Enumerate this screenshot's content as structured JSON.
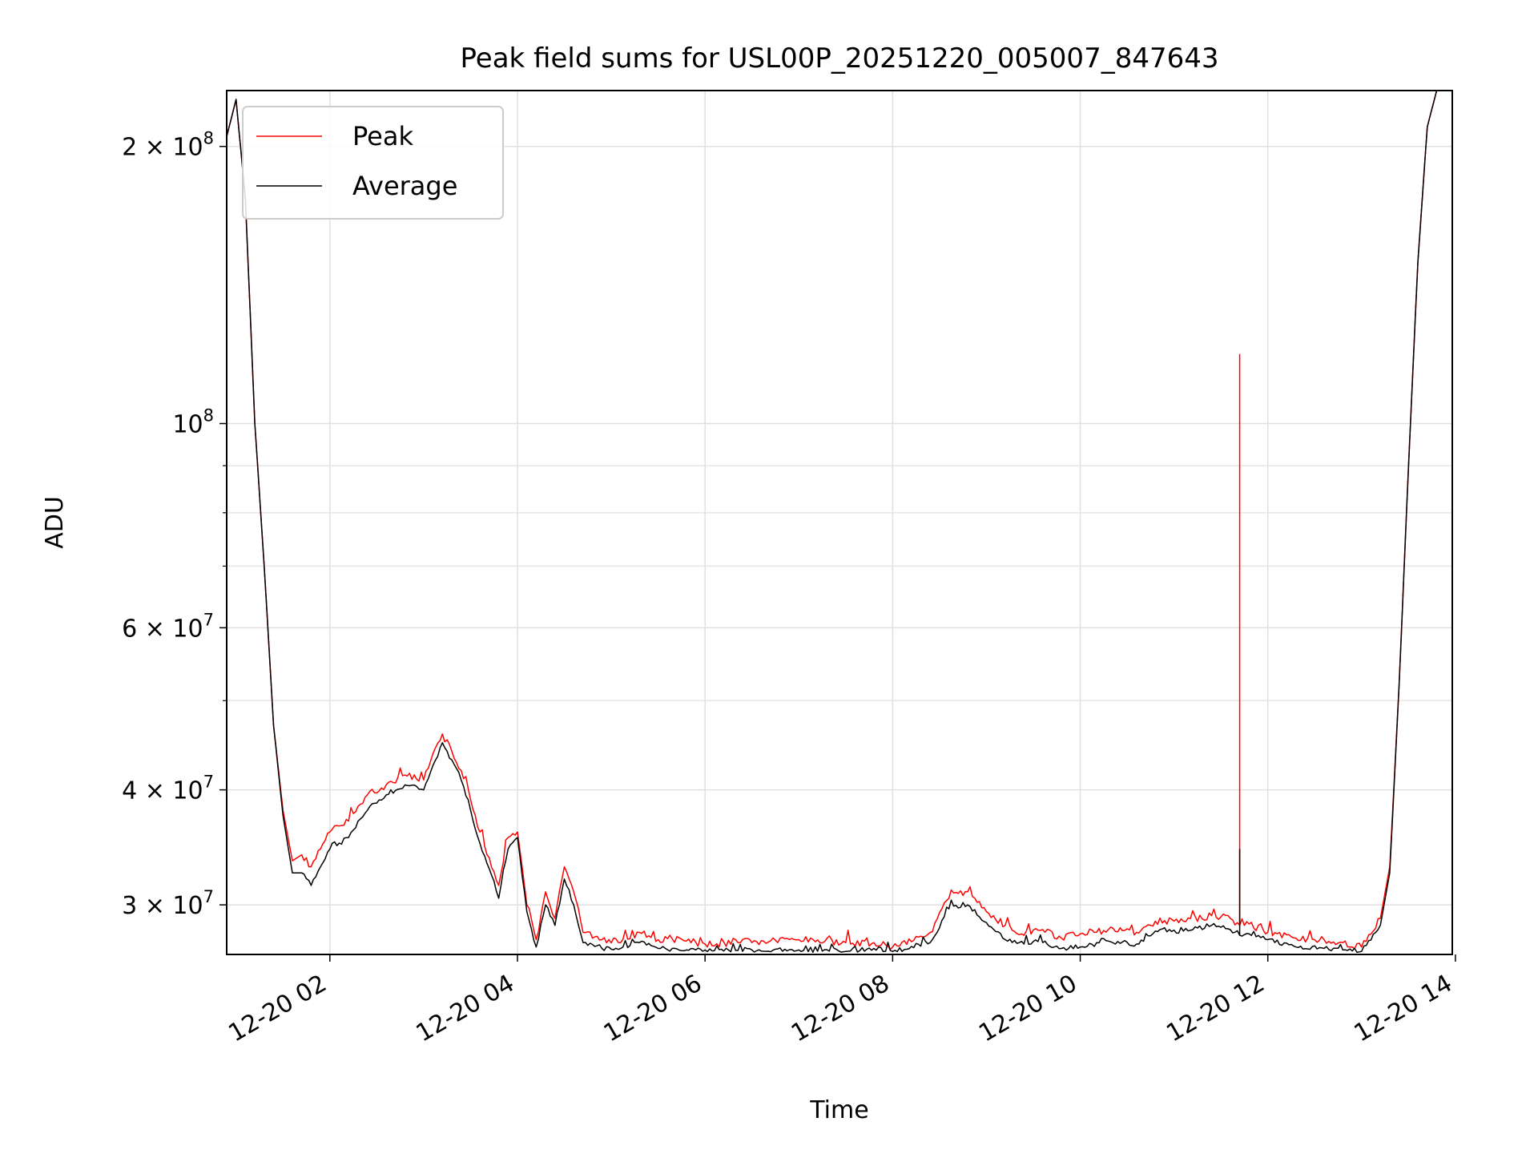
{
  "chart_data": {
    "type": "line",
    "title": "Peak field sums for USL00P_20251220_005007_847643",
    "xlabel": "Time",
    "ylabel": "ADU",
    "x_axis": {
      "type": "time",
      "range": [
        "2025-12-20 00:54",
        "2025-12-20 13:58"
      ],
      "ticks": [
        {
          "value": "2025-12-20 02:00",
          "label": "12-20 02"
        },
        {
          "value": "2025-12-20 04:00",
          "label": "12-20 04"
        },
        {
          "value": "2025-12-20 06:00",
          "label": "12-20 06"
        },
        {
          "value": "2025-12-20 08:00",
          "label": "12-20 08"
        },
        {
          "value": "2025-12-20 10:00",
          "label": "12-20 10"
        },
        {
          "value": "2025-12-20 12:00",
          "label": "12-20 12"
        },
        {
          "value": "2025-12-20 14:00",
          "label": "12-20 14"
        }
      ]
    },
    "y_axis": {
      "scale": "log",
      "range": [
        26500000,
        230000000
      ],
      "ticks": [
        {
          "value": 30000000,
          "mantissa": "3",
          "exponent": "7"
        },
        {
          "value": 40000000,
          "mantissa": "4",
          "exponent": "7"
        },
        {
          "value": 60000000,
          "mantissa": "6",
          "exponent": "7"
        },
        {
          "value": 100000000,
          "mantissa": "",
          "exponent": "8"
        },
        {
          "value": 200000000,
          "mantissa": "2",
          "exponent": "8"
        }
      ],
      "minor_ticks": [
        50000000,
        70000000,
        80000000,
        90000000
      ]
    },
    "grid": true,
    "legend": {
      "placement": "top-left",
      "entries": [
        "Peak",
        "Average"
      ]
    },
    "x": [
      "2025-12-20 00:54",
      "2025-12-20 01:00",
      "2025-12-20 01:06",
      "2025-12-20 01:12",
      "2025-12-20 01:18",
      "2025-12-20 01:24",
      "2025-12-20 01:30",
      "2025-12-20 01:36",
      "2025-12-20 01:42",
      "2025-12-20 01:48",
      "2025-12-20 01:54",
      "2025-12-20 02:00",
      "2025-12-20 02:12",
      "2025-12-20 02:24",
      "2025-12-20 02:36",
      "2025-12-20 02:48",
      "2025-12-20 03:00",
      "2025-12-20 03:12",
      "2025-12-20 03:24",
      "2025-12-20 03:36",
      "2025-12-20 03:48",
      "2025-12-20 03:54",
      "2025-12-20 04:00",
      "2025-12-20 04:06",
      "2025-12-20 04:12",
      "2025-12-20 04:18",
      "2025-12-20 04:24",
      "2025-12-20 04:30",
      "2025-12-20 04:36",
      "2025-12-20 04:42",
      "2025-12-20 04:54",
      "2025-12-20 05:06",
      "2025-12-20 05:18",
      "2025-12-20 05:30",
      "2025-12-20 05:48",
      "2025-12-20 06:00",
      "2025-12-20 06:30",
      "2025-12-20 07:00",
      "2025-12-20 07:30",
      "2025-12-20 07:48",
      "2025-12-20 08:00",
      "2025-12-20 08:24",
      "2025-12-20 08:36",
      "2025-12-20 08:48",
      "2025-12-20 09:00",
      "2025-12-20 09:12",
      "2025-12-20 09:24",
      "2025-12-20 09:36",
      "2025-12-20 09:48",
      "2025-12-20 10:00",
      "2025-12-20 10:18",
      "2025-12-20 10:36",
      "2025-12-20 10:48",
      "2025-12-20 11:06",
      "2025-12-20 11:24",
      "2025-12-20 11:36",
      "2025-12-20 11:42",
      "2025-12-20 11:48",
      "2025-12-20 12:00",
      "2025-12-20 12:18",
      "2025-12-20 12:36",
      "2025-12-20 12:48",
      "2025-12-20 13:00",
      "2025-12-20 13:12",
      "2025-12-20 13:18",
      "2025-12-20 13:24",
      "2025-12-20 13:30",
      "2025-12-20 13:36",
      "2025-12-20 13:42",
      "2025-12-20 13:48",
      "2025-12-20 13:54"
    ],
    "series": [
      {
        "name": "Peak",
        "color": "#ff0000",
        "values": [
          205000000,
          225000000,
          175000000,
          100000000,
          70000000,
          47000000,
          38000000,
          33500000,
          34000000,
          33000000,
          34500000,
          36000000,
          37000000,
          39500000,
          40500000,
          41500000,
          41000000,
          46000000,
          42000000,
          36000000,
          31500000,
          35500000,
          36000000,
          30000000,
          27500000,
          31000000,
          29000000,
          33000000,
          31000000,
          28000000,
          27500000,
          27300000,
          28000000,
          27500000,
          27400000,
          27200000,
          27300000,
          27500000,
          27300000,
          27300000,
          27000000,
          28000000,
          30500000,
          31000000,
          29500000,
          28500000,
          27800000,
          28200000,
          27600000,
          27900000,
          28200000,
          28000000,
          28800000,
          28800000,
          29200000,
          29000000,
          28500000,
          28600000,
          28000000,
          27600000,
          27500000,
          27300000,
          27000000,
          29000000,
          33000000,
          52000000,
          90000000,
          150000000,
          210000000,
          230000000,
          230000000
        ]
      },
      {
        "name": "Average",
        "color": "#000000",
        "values": [
          205000000,
          225000000,
          175000000,
          100000000,
          70000000,
          47000000,
          37500000,
          32500000,
          32500000,
          31500000,
          33000000,
          34500000,
          35500000,
          38000000,
          39500000,
          40500000,
          40000000,
          45000000,
          41000000,
          35000000,
          30500000,
          34500000,
          35500000,
          29500000,
          27000000,
          30000000,
          28500000,
          32000000,
          30000000,
          27300000,
          26900000,
          26900000,
          27300000,
          26900000,
          26800000,
          26800000,
          26800000,
          26800000,
          26700000,
          26900000,
          26700000,
          27300000,
          29700000,
          30000000,
          28700000,
          27500000,
          27200000,
          27300000,
          26900000,
          27000000,
          27400000,
          27200000,
          28100000,
          28100000,
          28500000,
          28200000,
          27800000,
          27900000,
          27500000,
          27000000,
          26900000,
          26800000,
          26700000,
          28500000,
          32500000,
          52000000,
          90000000,
          150000000,
          210000000,
          230000000,
          230000000
        ]
      }
    ],
    "annotations": [
      {
        "series": "Peak",
        "x": "2025-12-20 11:42",
        "y": 119000000,
        "note_type": "spike"
      },
      {
        "series": "Average",
        "x": "2025-12-20 11:42",
        "y": 34500000,
        "note_type": "spike"
      }
    ]
  }
}
